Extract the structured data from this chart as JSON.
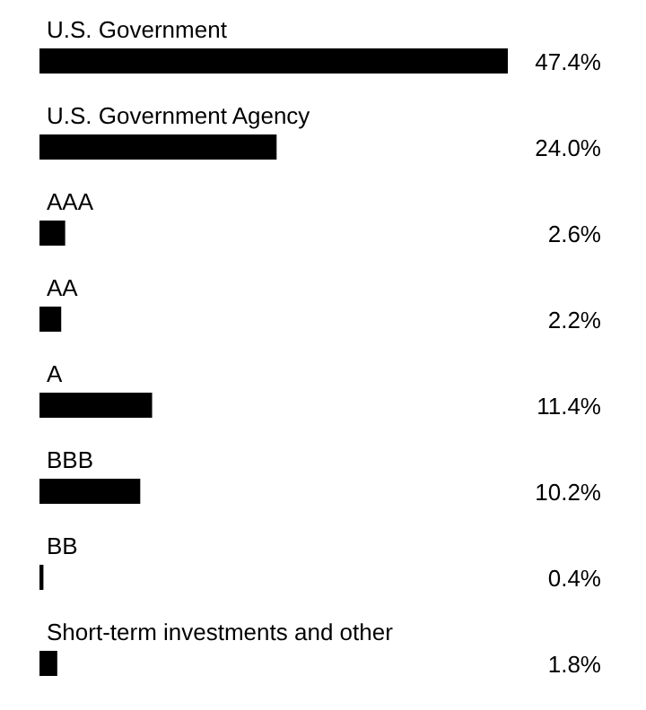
{
  "chart_data": {
    "type": "bar",
    "orientation": "horizontal",
    "categories": [
      "U.S. Government",
      "U.S. Government Agency",
      "AAA",
      "AA",
      "A",
      "BBB",
      "BB",
      "Short-term investments and other"
    ],
    "values": [
      47.4,
      24.0,
      2.6,
      2.2,
      11.4,
      10.2,
      0.4,
      1.8
    ],
    "value_labels": [
      "47.4%",
      "24.0%",
      "2.6%",
      "2.2%",
      "11.4%",
      "10.2%",
      "0.4%",
      "1.8%"
    ],
    "color": "#000000",
    "grid": false,
    "legend": false
  }
}
